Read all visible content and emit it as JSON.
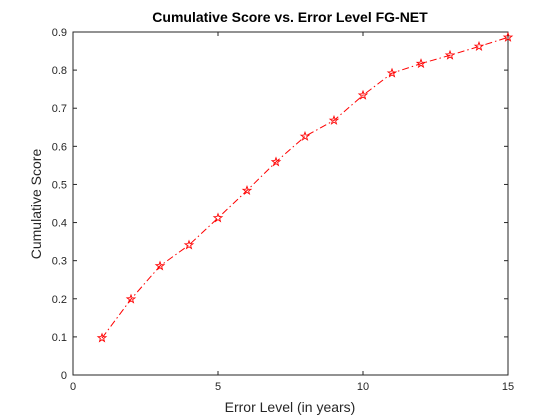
{
  "chart_data": {
    "type": "line",
    "title": "Cumulative Score vs. Error Level FG-NET",
    "xlabel": "Error Level (in years)",
    "ylabel": "Cumulative Score",
    "xlim": [
      0,
      15
    ],
    "ylim": [
      0,
      0.9
    ],
    "xticks": [
      "0",
      "5",
      "10",
      "15"
    ],
    "yticks": [
      "0",
      "0.1",
      "0.2",
      "0.3",
      "0.4",
      "0.5",
      "0.6",
      "0.7",
      "0.8",
      "0.9"
    ],
    "grid": false,
    "series": [
      {
        "x": [
          1,
          2,
          3,
          4,
          5,
          6,
          7,
          8,
          9,
          10,
          11,
          12,
          13,
          14,
          15
        ],
        "values": [
          0.097,
          0.199,
          0.286,
          0.341,
          0.412,
          0.484,
          0.559,
          0.626,
          0.668,
          0.734,
          0.792,
          0.817,
          0.839,
          0.862,
          0.886
        ],
        "color": "#ff0000",
        "line_style": "dash-dot",
        "marker": "star"
      }
    ]
  }
}
